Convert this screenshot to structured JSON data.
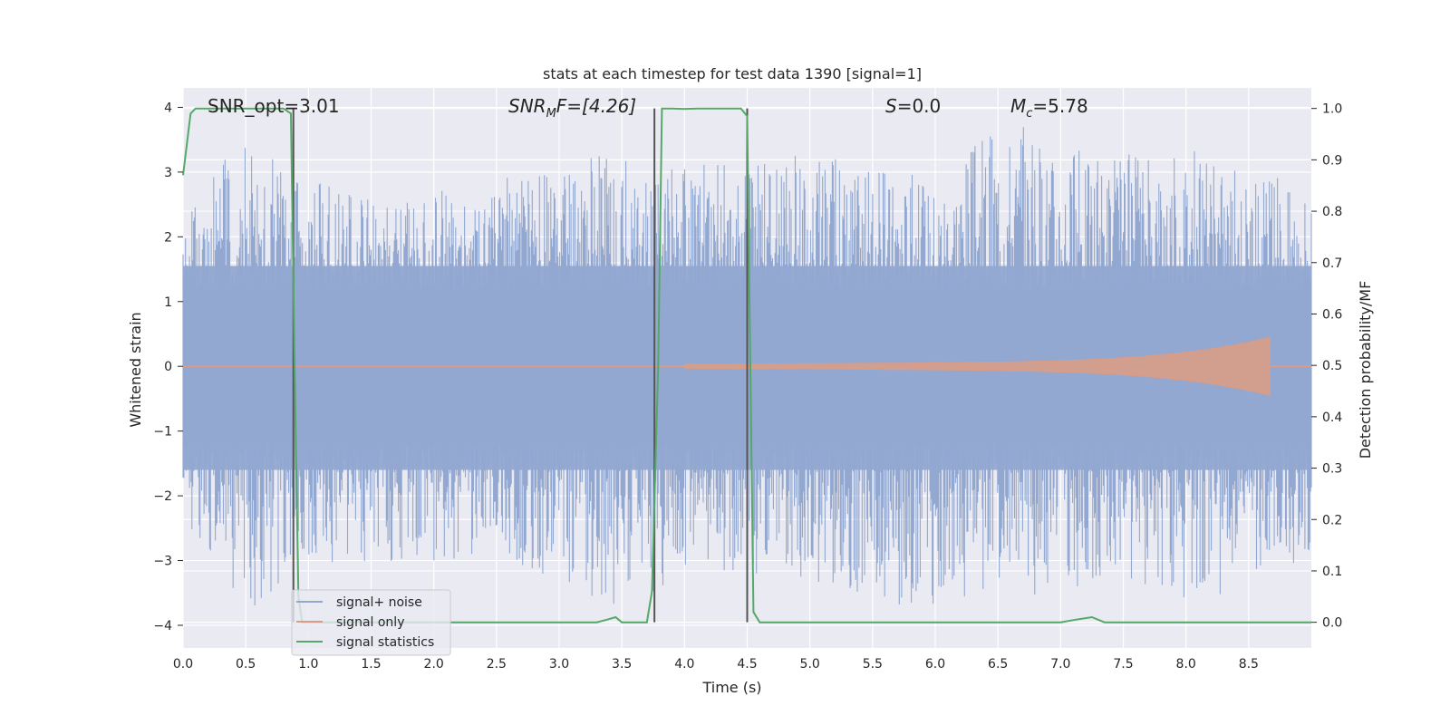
{
  "chart_data": {
    "type": "line",
    "title": "stats at each timestep for test data 1390 [signal=1]",
    "xlabel": "Time (s)",
    "ylabel": "Whitened strain",
    "ylabel_right": "Detection probability/MF",
    "xlim": [
      0.0,
      9.0
    ],
    "ylim": [
      -4.35,
      4.3
    ],
    "ylim_right": [
      -0.05,
      1.04
    ],
    "xticks": [
      "0.0",
      "0.5",
      "1.0",
      "1.5",
      "2.0",
      "2.5",
      "3.0",
      "3.5",
      "4.0",
      "4.5",
      "5.0",
      "5.5",
      "6.0",
      "6.5",
      "7.0",
      "7.5",
      "8.0",
      "8.5"
    ],
    "yticks": [
      "4",
      "3",
      "2",
      "1",
      "0",
      "−1",
      "−2",
      "−3",
      "−4"
    ],
    "yticks_right": [
      "1.0",
      "0.9",
      "0.8",
      "0.7",
      "0.6",
      "0.5",
      "0.4",
      "0.3",
      "0.2",
      "0.1",
      "0.0"
    ],
    "grid": true,
    "legend_position": "lower-left",
    "annotations": {
      "snr_opt": "SNR_opt=3.01",
      "snr_mf_main": "SNR",
      "snr_mf_sub": "M",
      "snr_mf_rest": "F=[4.26]",
      "s_main": "S",
      "s_rest": "=0.0",
      "mc_main": "M",
      "mc_sub": "c",
      "mc_rest": "=5.78"
    },
    "series": [
      {
        "name": "signal+ noise",
        "color": "#92a8d1",
        "description_values": "noise time series, amplitude roughly within [-4, 4]",
        "envelope_upper": [
          [
            0.0,
            2.3
          ],
          [
            0.5,
            3.7
          ],
          [
            1.0,
            2.9
          ],
          [
            1.5,
            2.6
          ],
          [
            2.0,
            2.7
          ],
          [
            2.5,
            2.9
          ],
          [
            3.0,
            3.0
          ],
          [
            3.5,
            3.5
          ],
          [
            4.0,
            3.1
          ],
          [
            4.5,
            3.2
          ],
          [
            5.0,
            3.3
          ],
          [
            5.5,
            3.1
          ],
          [
            6.0,
            2.9
          ],
          [
            6.5,
            3.9
          ],
          [
            7.0,
            3.4
          ],
          [
            7.5,
            3.3
          ],
          [
            8.0,
            3.4
          ],
          [
            8.5,
            3.0
          ],
          [
            9.0,
            2.8
          ]
        ],
        "envelope_lower": [
          [
            0.0,
            -2.3
          ],
          [
            0.5,
            -3.9
          ],
          [
            1.0,
            -3.2
          ],
          [
            1.5,
            -3.1
          ],
          [
            2.0,
            -3.0
          ],
          [
            2.5,
            -3.0
          ],
          [
            3.0,
            -3.3
          ],
          [
            3.5,
            -3.8
          ],
          [
            4.0,
            -3.2
          ],
          [
            4.5,
            -3.2
          ],
          [
            5.0,
            -3.3
          ],
          [
            5.5,
            -3.6
          ],
          [
            6.0,
            -3.8
          ],
          [
            6.5,
            -3.6
          ],
          [
            7.0,
            -3.5
          ],
          [
            7.5,
            -3.3
          ],
          [
            8.0,
            -3.7
          ],
          [
            8.5,
            -3.4
          ],
          [
            9.0,
            -2.9
          ]
        ]
      },
      {
        "name": "signal only",
        "color": "#d99c86",
        "chirp_start": 4.0,
        "chirp_end": 8.67,
        "chirp_peak_amplitude": 0.4
      },
      {
        "name": "signal statistics",
        "color": "#55a868",
        "x": [
          0.0,
          0.06,
          0.1,
          0.2,
          0.4,
          0.6,
          0.8,
          0.86,
          0.89,
          0.92,
          0.95,
          1.0,
          1.5,
          2.0,
          2.5,
          3.0,
          3.3,
          3.38,
          3.45,
          3.5,
          3.7,
          3.74,
          3.79,
          3.82,
          3.9,
          4.0,
          4.1,
          4.45,
          4.5,
          4.55,
          4.6,
          5.0,
          6.0,
          7.0,
          7.12,
          7.25,
          7.35,
          8.0,
          9.0
        ],
        "y": [
          0.87,
          0.99,
          1.0,
          1.0,
          1.0,
          1.0,
          1.0,
          0.99,
          0.5,
          0.05,
          0.0,
          0.0,
          0.0,
          0.0,
          0.0,
          0.0,
          0.0,
          0.005,
          0.01,
          0.0,
          0.0,
          0.06,
          0.5,
          1.0,
          1.0,
          0.999,
          1.0,
          1.0,
          0.985,
          0.02,
          0.0,
          0.0,
          0.0,
          0.0,
          0.005,
          0.01,
          0.0,
          0.0,
          0.0
        ]
      }
    ],
    "vertical_markers": [
      0.88,
      3.76,
      4.5
    ],
    "marker_color": "#555555"
  },
  "legend": {
    "items": [
      {
        "label": "signal+ noise",
        "color": "#92a8d1"
      },
      {
        "label": "signal only",
        "color": "#d99c86"
      },
      {
        "label": "signal statistics",
        "color": "#55a868"
      }
    ]
  },
  "theme": {
    "axes_bg": "#eaeaf2",
    "grid_color": "#ffffff"
  }
}
